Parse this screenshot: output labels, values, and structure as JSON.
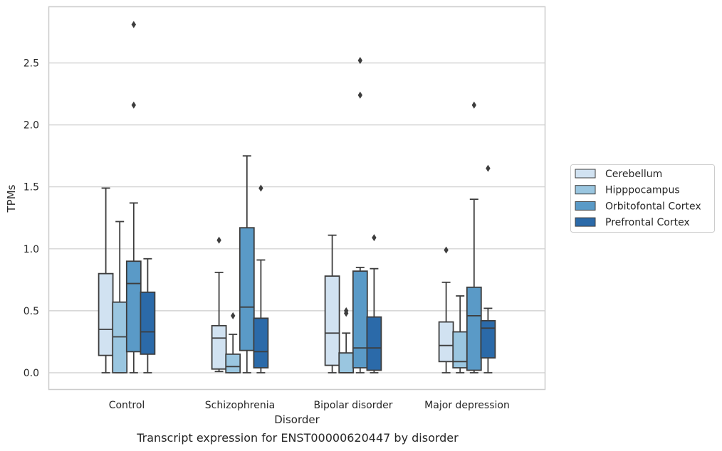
{
  "caption": "Transcript expression for ENST00000620447 by disorder",
  "chart_data": {
    "type": "box",
    "xlabel": "Disorder",
    "ylabel": "TPMs",
    "categories": [
      "Control",
      "Schizophrenia",
      "Bipolar disorder",
      "Major depression"
    ],
    "ylim": [
      -0.13,
      2.95
    ],
    "yticks": [
      "0.0",
      "0.5",
      "1.0",
      "1.5",
      "2.0",
      "2.5"
    ],
    "grid": "horizontal",
    "legend_position": "right",
    "series": [
      {
        "name": "Cerebellum",
        "color": "#d1e2f1",
        "boxes": [
          {
            "whisker_low": 0.0,
            "q1": 0.14,
            "median": 0.35,
            "q3": 0.8,
            "whisker_high": 1.49,
            "outliers": []
          },
          {
            "whisker_low": 0.01,
            "q1": 0.03,
            "median": 0.28,
            "q3": 0.38,
            "whisker_high": 0.81,
            "outliers": [
              1.07
            ]
          },
          {
            "whisker_low": 0.0,
            "q1": 0.06,
            "median": 0.32,
            "q3": 0.78,
            "whisker_high": 1.11,
            "outliers": []
          },
          {
            "whisker_low": 0.0,
            "q1": 0.09,
            "median": 0.22,
            "q3": 0.41,
            "whisker_high": 0.73,
            "outliers": [
              0.99
            ]
          }
        ]
      },
      {
        "name": "Hipppocampus",
        "color": "#9ac6e0",
        "boxes": [
          {
            "whisker_low": 0.0,
            "q1": 0.0,
            "median": 0.29,
            "q3": 0.57,
            "whisker_high": 1.22,
            "outliers": []
          },
          {
            "whisker_low": 0.0,
            "q1": 0.0,
            "median": 0.05,
            "q3": 0.15,
            "whisker_high": 0.31,
            "outliers": [
              0.46
            ]
          },
          {
            "whisker_low": 0.0,
            "q1": 0.0,
            "median": 0.0,
            "q3": 0.16,
            "whisker_high": 0.32,
            "outliers": [
              0.48,
              0.5
            ]
          },
          {
            "whisker_low": 0.0,
            "q1": 0.04,
            "median": 0.09,
            "q3": 0.33,
            "whisker_high": 0.62,
            "outliers": []
          }
        ]
      },
      {
        "name": "Orbitofontal Cortex",
        "color": "#5a9ac7",
        "boxes": [
          {
            "whisker_low": 0.0,
            "q1": 0.17,
            "median": 0.72,
            "q3": 0.9,
            "whisker_high": 1.37,
            "outliers": [
              2.16,
              2.81
            ]
          },
          {
            "whisker_low": 0.0,
            "q1": 0.18,
            "median": 0.53,
            "q3": 1.17,
            "whisker_high": 1.75,
            "outliers": []
          },
          {
            "whisker_low": 0.0,
            "q1": 0.04,
            "median": 0.2,
            "q3": 0.82,
            "whisker_high": 0.85,
            "outliers": [
              2.24,
              2.52
            ]
          },
          {
            "whisker_low": 0.0,
            "q1": 0.02,
            "median": 0.46,
            "q3": 0.69,
            "whisker_high": 1.4,
            "outliers": [
              2.16
            ]
          }
        ]
      },
      {
        "name": "Prefrontal Cortex",
        "color": "#2b6aa9",
        "boxes": [
          {
            "whisker_low": 0.0,
            "q1": 0.15,
            "median": 0.33,
            "q3": 0.65,
            "whisker_high": 0.92,
            "outliers": []
          },
          {
            "whisker_low": 0.0,
            "q1": 0.04,
            "median": 0.17,
            "q3": 0.44,
            "whisker_high": 0.91,
            "outliers": [
              1.49
            ]
          },
          {
            "whisker_low": 0.0,
            "q1": 0.02,
            "median": 0.2,
            "q3": 0.45,
            "whisker_high": 0.84,
            "outliers": [
              1.09
            ]
          },
          {
            "whisker_low": 0.0,
            "q1": 0.12,
            "median": 0.36,
            "q3": 0.42,
            "whisker_high": 0.52,
            "outliers": [
              1.65
            ]
          }
        ]
      }
    ]
  }
}
